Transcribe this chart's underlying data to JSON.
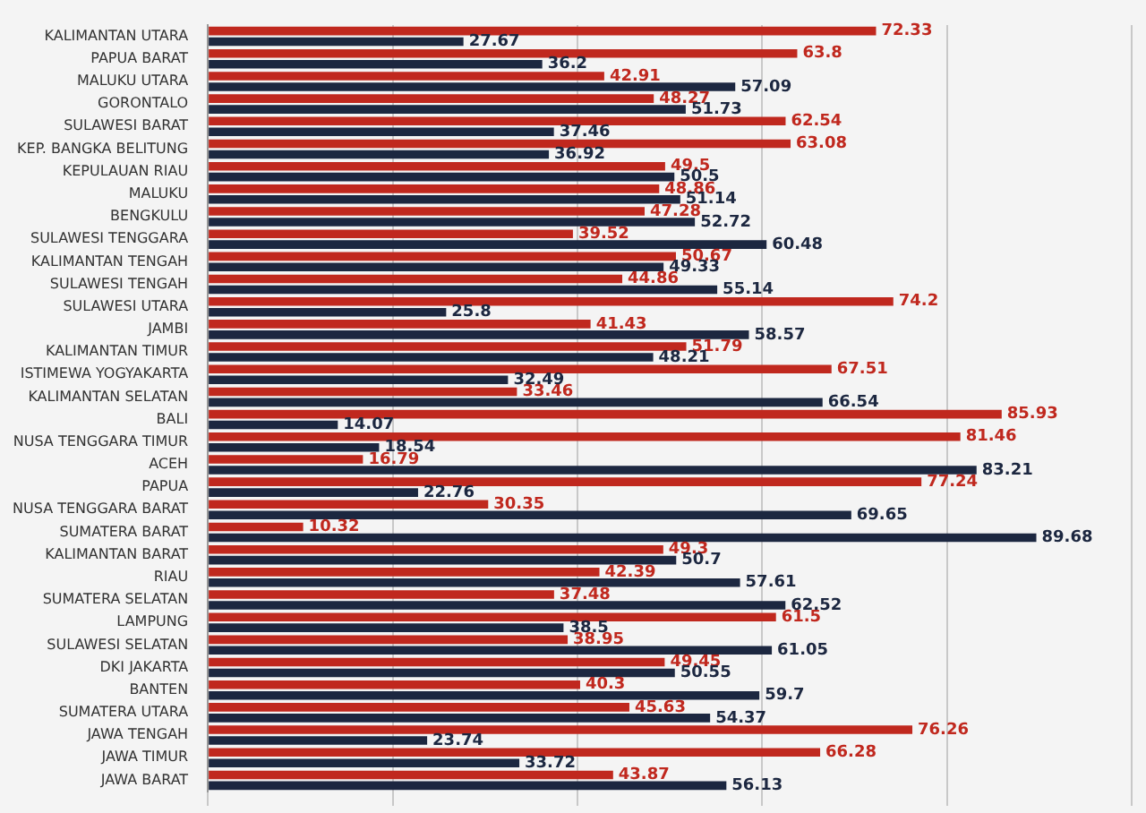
{
  "chart_data": {
    "type": "bar",
    "orientation": "horizontal",
    "categories": [
      "KALIMANTAN UTARA",
      "PAPUA BARAT",
      "MALUKU UTARA",
      "GORONTALO",
      "SULAWESI BARAT",
      "KEP. BANGKA BELITUNG",
      "KEPULAUAN RIAU",
      "MALUKU",
      "BENGKULU",
      "SULAWESI TENGGARA",
      "KALIMANTAN TENGAH",
      "SULAWESI TENGAH",
      "SULAWESI UTARA",
      "JAMBI",
      "KALIMANTAN TIMUR",
      "ISTIMEWA YOGYAKARTA",
      "KALIMANTAN SELATAN",
      "BALI",
      "NUSA TENGGARA TIMUR",
      "ACEH",
      "PAPUA",
      "NUSA TENGGARA BARAT",
      "SUMATERA BARAT",
      "KALIMANTAN BARAT",
      "RIAU",
      "SUMATERA SELATAN",
      "LAMPUNG",
      "SULAWESI SELATAN",
      "DKI JAKARTA",
      "BANTEN",
      "SUMATERA UTARA",
      "JAWA TENGAH",
      "JAWA TIMUR",
      "JAWA BARAT"
    ],
    "series": [
      {
        "color": "#c0281e",
        "values": [
          72.33,
          63.8,
          42.91,
          48.27,
          62.54,
          63.08,
          49.5,
          48.86,
          47.28,
          39.52,
          50.67,
          44.86,
          74.2,
          41.43,
          51.79,
          67.51,
          33.46,
          85.93,
          81.46,
          16.79,
          77.24,
          30.35,
          10.32,
          49.3,
          42.39,
          37.48,
          61.5,
          38.95,
          49.45,
          40.3,
          45.63,
          76.26,
          66.28,
          43.87
        ]
      },
      {
        "color": "#1c2740",
        "values": [
          27.67,
          36.2,
          57.09,
          51.73,
          37.46,
          36.92,
          50.5,
          51.14,
          52.72,
          60.48,
          49.33,
          55.14,
          25.8,
          58.57,
          48.21,
          32.49,
          66.54,
          14.07,
          18.54,
          83.21,
          22.76,
          69.65,
          89.68,
          50.7,
          57.61,
          62.52,
          38.5,
          61.05,
          50.55,
          59.7,
          54.37,
          23.74,
          33.72,
          56.13
        ]
      }
    ],
    "xlim": [
      0,
      100
    ],
    "xticks": [
      0,
      20,
      40,
      60,
      80,
      100
    ],
    "tick_labels": "y",
    "grid": "x",
    "data_labels": true,
    "legend": false
  }
}
